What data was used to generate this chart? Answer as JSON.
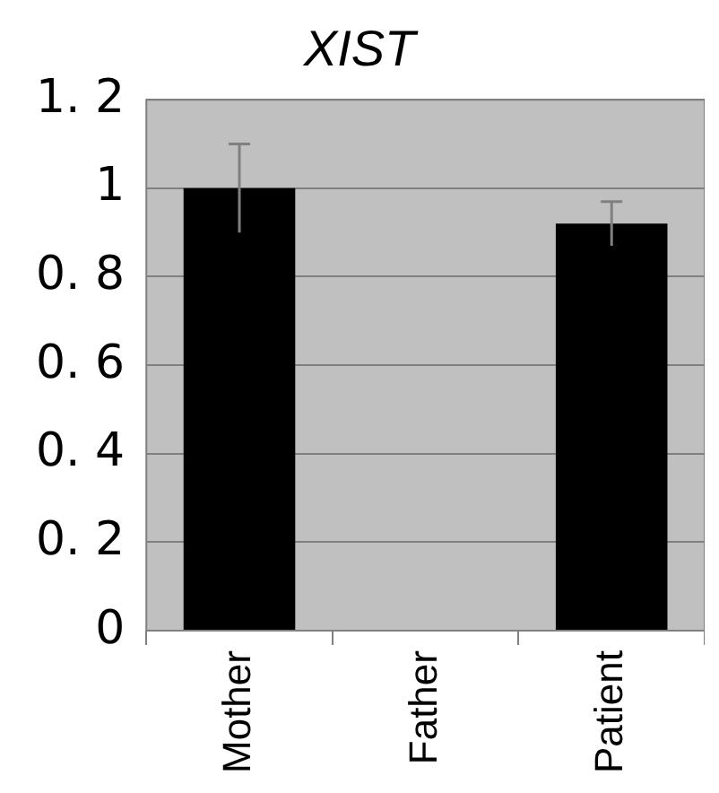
{
  "chart_data": {
    "type": "bar",
    "title": "XIST",
    "categories": [
      "Mother",
      "Father",
      "Patient"
    ],
    "values": [
      1.0,
      0,
      0.92
    ],
    "errors": [
      0.1,
      null,
      0.05
    ],
    "color": "#000000",
    "ylim": [
      0,
      1.2
    ],
    "yticks": [
      0,
      {
        "value": 0.2,
        "label": "0. 2"
      },
      {
        "value": 0.4,
        "label": "0. 4"
      },
      {
        "value": 0.6,
        "label": "0. 6"
      },
      {
        "value": 0.8,
        "label": "0. 8"
      },
      1,
      {
        "value": 1.2,
        "label": "1. 2"
      }
    ],
    "grid": "y"
  }
}
